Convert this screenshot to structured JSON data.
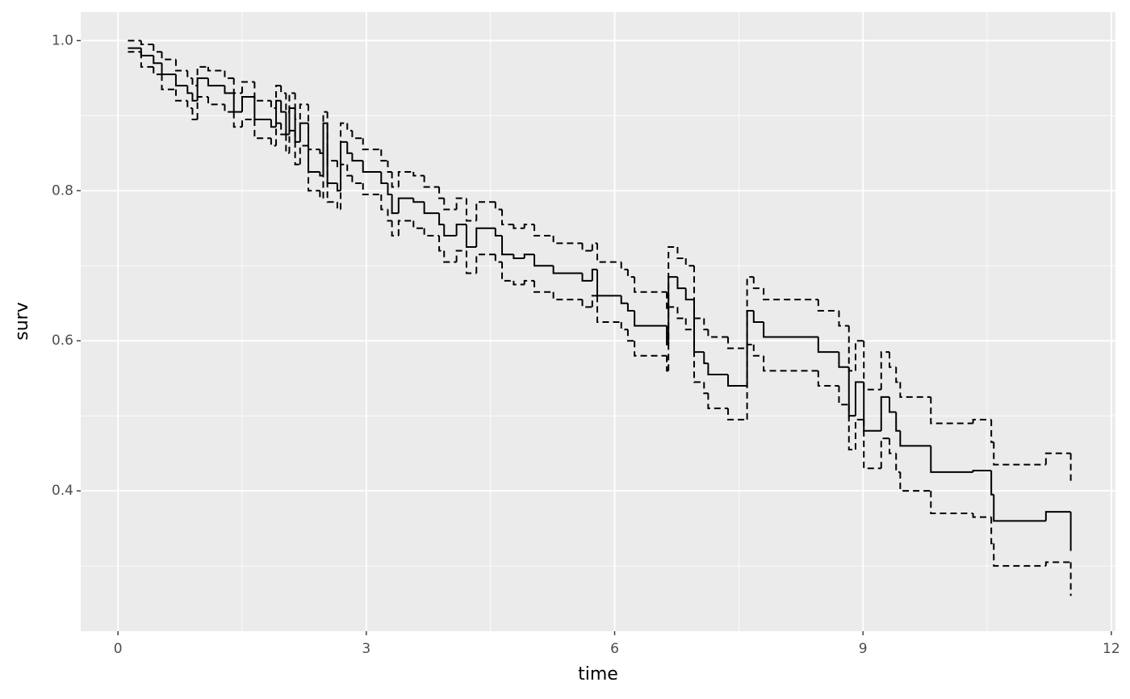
{
  "chart_data": {
    "type": "step",
    "xlabel": "time",
    "ylabel": "surv",
    "x": [
      0.12,
      0.28,
      0.43,
      0.53,
      0.7,
      0.84,
      0.9,
      0.96,
      1.09,
      1.29,
      1.4,
      1.5,
      1.65,
      1.85,
      1.91,
      1.97,
      2.03,
      2.07,
      2.14,
      2.2,
      2.3,
      2.44,
      2.48,
      2.53,
      2.65,
      2.69,
      2.77,
      2.83,
      2.96,
      3.18,
      3.26,
      3.31,
      3.39,
      3.57,
      3.7,
      3.88,
      3.94,
      4.09,
      4.21,
      4.33,
      4.56,
      4.64,
      4.78,
      4.91,
      5.03,
      5.26,
      5.61,
      5.73,
      5.79,
      6.08,
      6.16,
      6.24,
      6.63,
      6.65,
      6.76,
      6.86,
      6.96,
      7.08,
      7.13,
      7.37,
      7.6,
      7.68,
      7.8,
      8.46,
      8.71,
      8.83,
      8.91,
      9.01,
      9.22,
      9.32,
      9.4,
      9.45,
      9.82,
      10.33,
      10.55,
      10.58,
      11.21,
      11.51
    ],
    "series": [
      {
        "color": "#000000",
        "dashed": false,
        "values": [
          0.99,
          0.98,
          0.97,
          0.955,
          0.94,
          0.93,
          0.92,
          0.95,
          0.94,
          0.93,
          0.905,
          0.925,
          0.895,
          0.885,
          0.92,
          0.905,
          0.875,
          0.91,
          0.865,
          0.89,
          0.825,
          0.82,
          0.89,
          0.81,
          0.8,
          0.865,
          0.85,
          0.84,
          0.825,
          0.81,
          0.795,
          0.77,
          0.79,
          0.785,
          0.77,
          0.755,
          0.74,
          0.755,
          0.725,
          0.75,
          0.74,
          0.715,
          0.71,
          0.715,
          0.7,
          0.69,
          0.68,
          0.695,
          0.66,
          0.65,
          0.64,
          0.62,
          0.595,
          0.685,
          0.67,
          0.655,
          0.585,
          0.57,
          0.555,
          0.54,
          0.64,
          0.625,
          0.605,
          0.585,
          0.565,
          0.5,
          0.545,
          0.48,
          0.525,
          0.505,
          0.48,
          0.46,
          0.425,
          0.427,
          0.395,
          0.36,
          0.372,
          0.32
        ]
      },
      {
        "color": "#000000",
        "dashed": true,
        "values": [
          1.0,
          0.995,
          0.985,
          0.975,
          0.96,
          0.95,
          0.94,
          0.965,
          0.96,
          0.95,
          0.93,
          0.945,
          0.92,
          0.91,
          0.94,
          0.93,
          0.905,
          0.93,
          0.895,
          0.915,
          0.855,
          0.85,
          0.905,
          0.84,
          0.83,
          0.89,
          0.88,
          0.87,
          0.855,
          0.84,
          0.825,
          0.805,
          0.825,
          0.82,
          0.805,
          0.79,
          0.775,
          0.79,
          0.76,
          0.785,
          0.775,
          0.755,
          0.75,
          0.755,
          0.74,
          0.73,
          0.72,
          0.73,
          0.705,
          0.695,
          0.685,
          0.665,
          0.64,
          0.725,
          0.71,
          0.7,
          0.63,
          0.615,
          0.605,
          0.59,
          0.685,
          0.67,
          0.655,
          0.64,
          0.62,
          0.56,
          0.6,
          0.535,
          0.585,
          0.565,
          0.545,
          0.525,
          0.49,
          0.495,
          0.465,
          0.435,
          0.45,
          0.41
        ]
      },
      {
        "color": "#000000",
        "dashed": true,
        "values": [
          0.985,
          0.965,
          0.955,
          0.935,
          0.92,
          0.91,
          0.895,
          0.925,
          0.915,
          0.905,
          0.885,
          0.895,
          0.87,
          0.86,
          0.89,
          0.875,
          0.85,
          0.88,
          0.835,
          0.86,
          0.8,
          0.79,
          0.855,
          0.785,
          0.775,
          0.835,
          0.82,
          0.81,
          0.795,
          0.775,
          0.76,
          0.74,
          0.76,
          0.75,
          0.74,
          0.72,
          0.705,
          0.72,
          0.69,
          0.715,
          0.705,
          0.68,
          0.675,
          0.68,
          0.665,
          0.655,
          0.645,
          0.66,
          0.625,
          0.615,
          0.6,
          0.58,
          0.56,
          0.645,
          0.63,
          0.615,
          0.545,
          0.53,
          0.51,
          0.495,
          0.595,
          0.58,
          0.56,
          0.54,
          0.515,
          0.455,
          0.495,
          0.43,
          0.47,
          0.45,
          0.425,
          0.4,
          0.37,
          0.365,
          0.33,
          0.3,
          0.305,
          0.26
        ]
      }
    ],
    "xlim": [
      -0.45,
      12.05
    ],
    "ylim": [
      0.213,
      1.038
    ],
    "xticks": [
      0,
      3,
      6,
      9,
      12
    ],
    "yticks": [
      {
        "value": 0.4,
        "label": "0.4"
      },
      {
        "value": 0.6,
        "label": "0.6"
      },
      {
        "value": 0.8,
        "label": "0.8"
      },
      {
        "value": 1.0,
        "label": "1.0"
      }
    ],
    "xminorticks": [
      1.5,
      4.5,
      7.5,
      10.5
    ],
    "yminorticks": [
      0.3,
      0.5,
      0.7,
      0.9
    ],
    "panel_color": "#EBEBEB",
    "grid_color": "#FFFFFF"
  }
}
